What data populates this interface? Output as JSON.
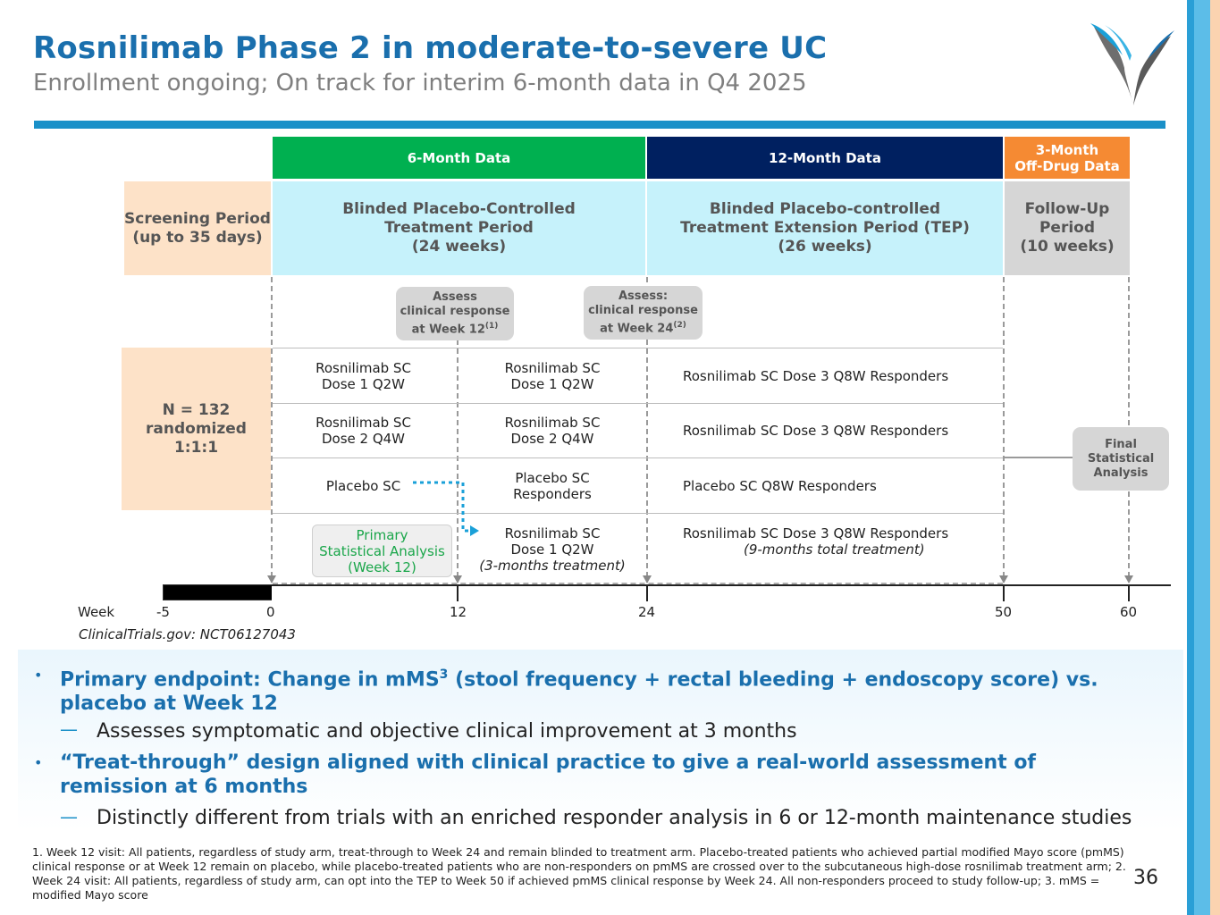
{
  "header": {
    "title": "Rosnilimab Phase 2 in moderate-to-severe UC",
    "subtitle": "Enrollment ongoing; On track for interim 6-month data in Q4 2025"
  },
  "colors": {
    "title_blue": "#1a6fad",
    "six_month": "#00b050",
    "twelve_month": "#002060",
    "three_month": "#f58a33",
    "treatment_period": "#c6f2fb",
    "screening": "#fde2c8",
    "followup": "#d6d6d6",
    "primary_green": "#1aa64a",
    "crossover_blue": "#1aa0d8"
  },
  "phases": {
    "six_month": "6-Month Data",
    "twelve_month": "12-Month Data",
    "three_month_line1": "3-Month",
    "three_month_line2": "Off-Drug Data"
  },
  "periods": {
    "screening_line1": "Screening Period",
    "screening_line2": "(up to 35 days)",
    "blinded_line1": "Blinded Placebo-Controlled",
    "blinded_line2": "Treatment Period",
    "blinded_line3": "(24 weeks)",
    "tep_line1": "Blinded Placebo-controlled",
    "tep_line2": "Treatment Extension Period (TEP)",
    "tep_line3": "(26 weeks)",
    "followup_line1": "Follow-Up",
    "followup_line2": "Period",
    "followup_line3": "(10 weeks)"
  },
  "callouts": {
    "week12_line1": "Assess",
    "week12_line2": "clinical response",
    "week12_line3": "at Week 12",
    "week12_sup": "(1)",
    "week24_line1": "Assess:",
    "week24_line2": "clinical response",
    "week24_line3": "at Week 24",
    "week24_sup": "(2)",
    "final_line1": "Final",
    "final_line2": "Statistical",
    "final_line3": "Analysis"
  },
  "randomization": {
    "line1": "N = 132",
    "line2": "randomized",
    "line3": "1:1:1"
  },
  "arms": [
    {
      "a_line1": "Rosnilimab SC",
      "a_line2": "Dose 1 Q2W",
      "b_line1": "Rosnilimab SC",
      "b_line2": "Dose 1 Q2W",
      "c_line1": "Rosnilimab SC Dose 3 Q8W Responders"
    },
    {
      "a_line1": "Rosnilimab SC",
      "a_line2": "Dose 2 Q4W",
      "b_line1": "Rosnilimab SC",
      "b_line2": "Dose 2 Q4W",
      "c_line1": "Rosnilimab SC Dose 3 Q8W Responders"
    },
    {
      "a_line1": "Placebo SC",
      "b_line1": "Placebo SC",
      "b_line2": "Responders",
      "c_line1": "Placebo SC Q8W Responders"
    }
  ],
  "crossover": {
    "b_line1": "Rosnilimab SC",
    "b_line2": "Dose 1 Q2W",
    "b_line3": "(3-months treatment)",
    "c_line1": "Rosnilimab SC Dose 3 Q8W Responders",
    "c_line2": "(9-months total treatment)"
  },
  "primary_analysis": {
    "line1": "Primary",
    "line2": "Statistical Analysis",
    "line3": "(Week 12)"
  },
  "timeline": {
    "label": "Week",
    "ticks": [
      "-5",
      "0",
      "12",
      "24",
      "50",
      "60"
    ]
  },
  "registry": "ClinicalTrials.gov:  NCT06127043",
  "bullets": {
    "b1_pre": "Primary endpoint: Change in mMS",
    "b1_sup": "3",
    "b1_post": " (stool frequency + rectal bleeding + endoscopy score) vs.",
    "b1_line2": "placebo at Week 12",
    "b1_sub": "Assesses symptomatic and objective clinical improvement at 3 months",
    "b2_line1": "“Treat-through” design aligned with clinical practice to give a real-world assessment of",
    "b2_line2": "remission at 6 months",
    "b2_sub": "Distinctly different from trials with an enriched responder analysis in 6 or 12-month maintenance studies"
  },
  "footnote": "1. Week 12 visit: All patients, regardless of study arm, treat-through to Week 24 and remain blinded to treatment arm. Placebo-treated patients who achieved partial modified Mayo score (pmMS) clinical response or at Week 12 remain on placebo, while placebo-treated patients who are non-responders on pmMS are crossed over to the subcutaneous high-dose rosnilimab treatment arm; 2. Week 24 visit: All patients, regardless of study arm, can opt into the TEP to Week 50 if achieved pmMS clinical response by Week 24. All non-responders proceed to study follow-up; 3. mMS = modified Mayo score",
  "page_number": "36"
}
